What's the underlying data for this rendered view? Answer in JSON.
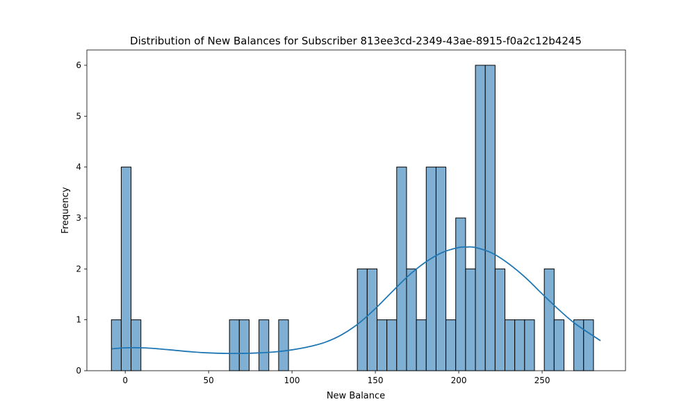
{
  "chart_data": {
    "type": "bar",
    "title": "Distribution of New Balances for Subscriber 813ee3cd-2349-43ae-8915-f0a2c12b4245",
    "xlabel": "New Balance",
    "ylabel": "Frequency",
    "xlim": [
      -23,
      300
    ],
    "ylim": [
      0,
      6.3
    ],
    "xticks": [
      0,
      50,
      100,
      150,
      200,
      250
    ],
    "yticks": [
      0,
      1,
      2,
      3,
      4,
      5,
      6
    ],
    "grid": false,
    "bar_color": "#7fafd3",
    "kde_color": "#1f77b4",
    "bin_width": 5.9,
    "bin_edges_start": -8.3,
    "counts": [
      1,
      4,
      1,
      0,
      0,
      0,
      0,
      0,
      0,
      0,
      0,
      0,
      1,
      1,
      0,
      1,
      0,
      1,
      0,
      0,
      0,
      0,
      0,
      0,
      0,
      2,
      2,
      1,
      1,
      4,
      2,
      1,
      4,
      4,
      1,
      3,
      2,
      6,
      6,
      2,
      1,
      1,
      1,
      0,
      2,
      1,
      0,
      1,
      1
    ],
    "kde": {
      "x": [
        -8,
        0,
        10,
        20,
        30,
        40,
        50,
        60,
        70,
        80,
        90,
        100,
        110,
        120,
        130,
        140,
        150,
        160,
        170,
        180,
        190,
        200,
        205,
        210,
        220,
        230,
        240,
        250,
        260,
        270,
        285
      ],
      "y": [
        0.43,
        0.45,
        0.45,
        0.43,
        0.4,
        0.37,
        0.35,
        0.34,
        0.34,
        0.35,
        0.37,
        0.41,
        0.47,
        0.56,
        0.71,
        0.93,
        1.22,
        1.55,
        1.87,
        2.13,
        2.32,
        2.42,
        2.43,
        2.42,
        2.31,
        2.1,
        1.83,
        1.51,
        1.2,
        0.92,
        0.59
      ]
    }
  }
}
